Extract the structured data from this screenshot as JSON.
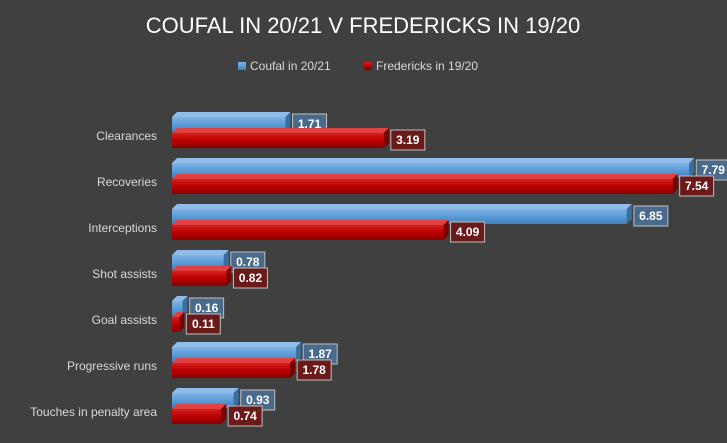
{
  "chart_data": {
    "type": "bar",
    "orientation": "horizontal",
    "title": "COUFAL IN 20/21 V FREDERICKS IN 19/20",
    "legend_position": "top",
    "grid": false,
    "xlim": [
      0,
      8
    ],
    "categories": [
      "Clearances",
      "Recoveries",
      "Interceptions",
      "Shot assists",
      "Goal assists",
      "Progressive runs",
      "Touches in penalty area"
    ],
    "series": [
      {
        "name": "Coufal in 20/21",
        "color": "#5b9bd5",
        "values": [
          1.71,
          7.79,
          6.85,
          0.78,
          0.16,
          1.87,
          0.93
        ]
      },
      {
        "name": "Fredericks in 19/20",
        "color": "#c00000",
        "values": [
          3.19,
          7.54,
          4.09,
          0.82,
          0.11,
          1.78,
          0.74
        ]
      }
    ]
  },
  "colors": {
    "background": "#404040",
    "text": "#ffffff",
    "axis_label": "#d9d9d9",
    "label_box_blue": "#4a6a8c",
    "label_box_red": "#6b1a1a"
  }
}
